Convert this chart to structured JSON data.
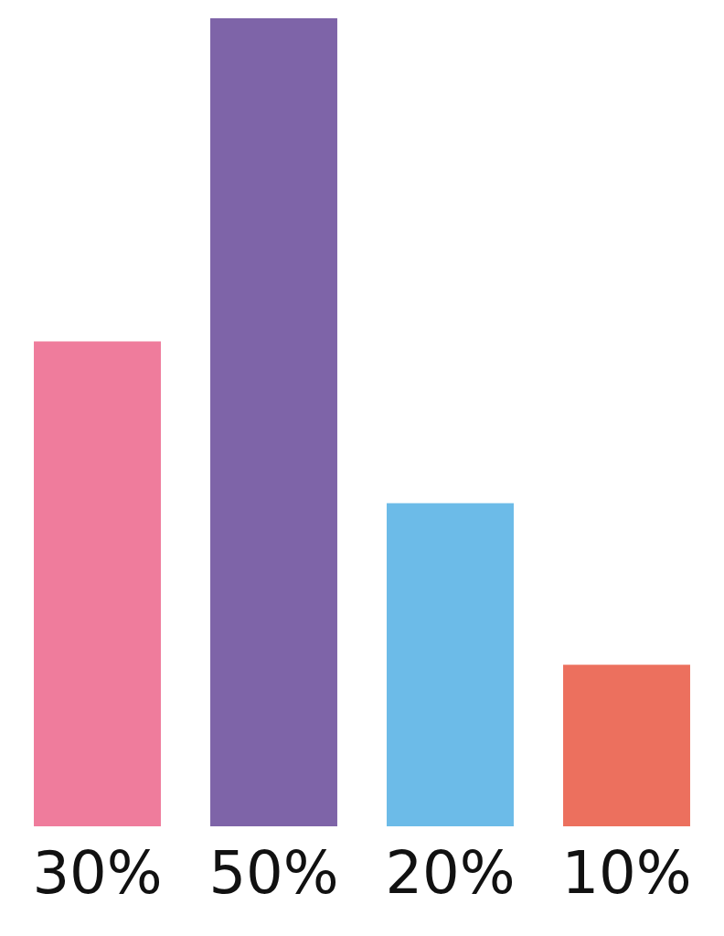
{
  "chart_data": {
    "type": "bar",
    "categories": [
      null,
      null,
      null,
      null
    ],
    "values": [
      30,
      50,
      20,
      10
    ],
    "colors": [
      "#ef7c9c",
      "#7e64a8",
      "#6cbbe8",
      "#ec705e"
    ],
    "value_labels": [
      "30%",
      "50%",
      "20%",
      "10%"
    ],
    "tick_labels": false,
    "legend": false
  }
}
